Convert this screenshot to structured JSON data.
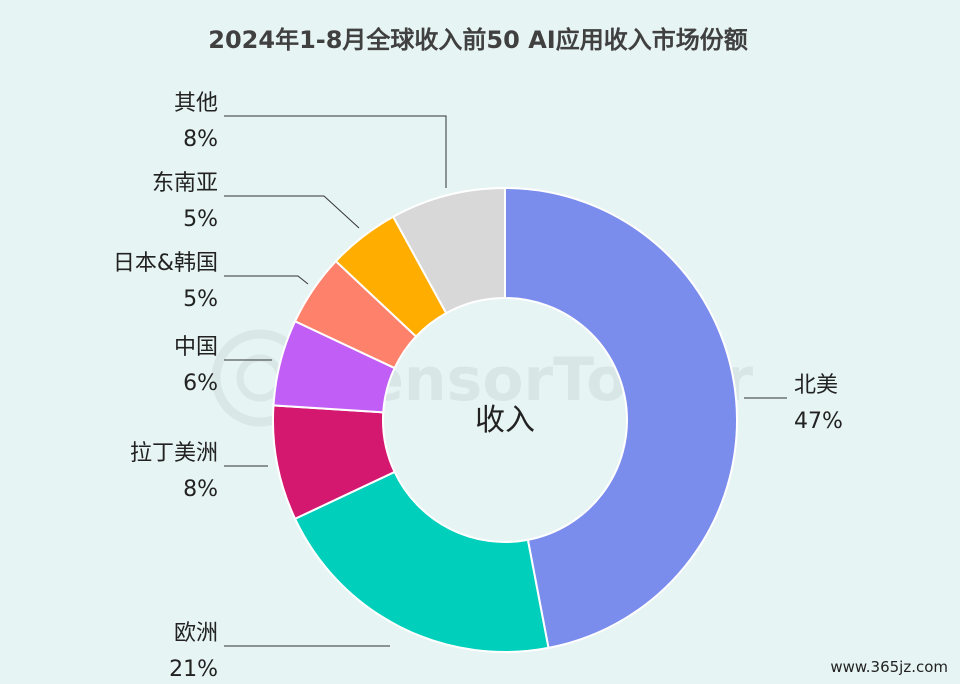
{
  "chart_data": {
    "type": "pie",
    "title": "2024年1-8月全球收入前50 AI应用收入市场份额",
    "center_label": "收入",
    "categories": [
      "北美",
      "欧洲",
      "拉丁美洲",
      "中国",
      "日本&韩国",
      "东南亚",
      "其他"
    ],
    "values": [
      47,
      21,
      8,
      6,
      5,
      5,
      8
    ],
    "value_labels": [
      "47%",
      "21%",
      "8%",
      "6%",
      "5%",
      "5%",
      "8%"
    ],
    "colors": [
      "#7a8ded",
      "#00cfbb",
      "#d4176f",
      "#c15ef5",
      "#fd816b",
      "#ffae00",
      "#d8d8d8"
    ],
    "legend": "none"
  },
  "watermark": "SensorTower",
  "site_mark": "www.365jz.com"
}
